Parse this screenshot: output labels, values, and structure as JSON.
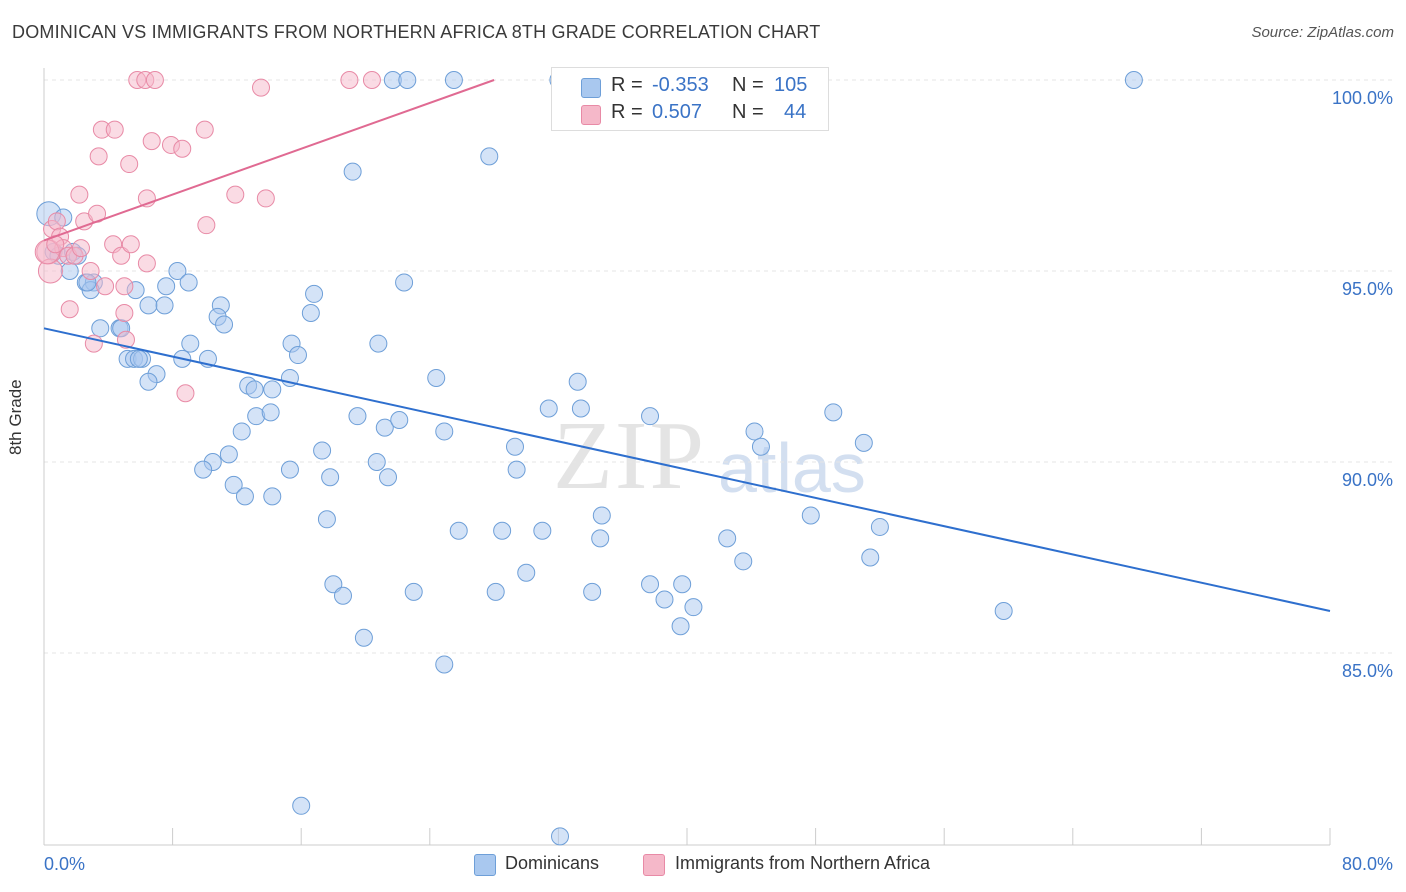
{
  "title": "DOMINICAN VS IMMIGRANTS FROM NORTHERN AFRICA 8TH GRADE CORRELATION CHART",
  "source": "Source: ZipAtlas.com",
  "watermark": {
    "zip": "ZIP",
    "atlas": "atlas"
  },
  "legend": {
    "rows": [
      {
        "r_label": "R =",
        "r_value": "-0.353",
        "n_label": "N =",
        "n_value": "105"
      },
      {
        "r_label": "R =",
        "r_value": "0.507",
        "n_label": "N =",
        "n_value": "44"
      }
    ]
  },
  "bottom_legend": {
    "series1": "Dominicans",
    "series2": "Immigrants from Northern Africa"
  },
  "colors": {
    "blue_fill": "#a9c8ef",
    "blue_stroke": "#6e9fd8",
    "blue_line": "#2e6fce",
    "pink_fill": "#f5b8c9",
    "pink_stroke": "#e88aa6",
    "pink_line": "#e06a92",
    "tick_label": "#3a73c6",
    "grid": "#e6e6e6"
  },
  "chart_data": {
    "type": "scatter",
    "title": "DOMINICAN VS IMMIGRANTS FROM NORTHERN AFRICA 8TH GRADE CORRELATION CHART",
    "xlabel": "",
    "ylabel": "8th Grade",
    "xlim": [
      0,
      80
    ],
    "ylim": [
      80.0,
      101.0
    ],
    "x_tick_labels": [
      "0.0%",
      "80.0%"
    ],
    "y_ticks": [
      85,
      90,
      95,
      100
    ],
    "y_tick_labels": [
      "85.0%",
      "90.0%",
      "95.0%",
      "100.0%"
    ],
    "grid": true,
    "legend_position": "top-center",
    "series": [
      {
        "name": "Dominicans",
        "color": "#6e9fd8",
        "r": -0.353,
        "n": 105,
        "trend": {
          "x": [
            0,
            80
          ],
          "y": [
            93.5,
            86.1
          ]
        },
        "points": [
          [
            0.3,
            96.5
          ],
          [
            1.2,
            96.4
          ],
          [
            0.6,
            95.5
          ],
          [
            0.9,
            95.4
          ],
          [
            1.8,
            95.5
          ],
          [
            2.1,
            95.4
          ],
          [
            1.6,
            95.0
          ],
          [
            2.6,
            94.7
          ],
          [
            3.1,
            94.7
          ],
          [
            2.9,
            94.5
          ],
          [
            5.7,
            94.5
          ],
          [
            6.5,
            94.1
          ],
          [
            7.6,
            94.6
          ],
          [
            8.3,
            95.0
          ],
          [
            9.0,
            94.7
          ],
          [
            11.0,
            94.1
          ],
          [
            10.8,
            93.8
          ],
          [
            11.2,
            93.6
          ],
          [
            7.5,
            94.1
          ],
          [
            3.5,
            93.5
          ],
          [
            4.7,
            93.5
          ],
          [
            5.2,
            92.7
          ],
          [
            5.6,
            92.7
          ],
          [
            6.1,
            92.7
          ],
          [
            7.0,
            92.3
          ],
          [
            8.6,
            92.7
          ],
          [
            10.2,
            92.7
          ],
          [
            6.5,
            92.1
          ],
          [
            9.1,
            93.1
          ],
          [
            12.7,
            92.0
          ],
          [
            14.2,
            91.9
          ],
          [
            15.3,
            92.2
          ],
          [
            15.4,
            93.1
          ],
          [
            15.8,
            92.8
          ],
          [
            13.1,
            91.9
          ],
          [
            13.2,
            91.2
          ],
          [
            14.1,
            91.3
          ],
          [
            12.3,
            90.8
          ],
          [
            11.5,
            90.2
          ],
          [
            10.5,
            90.0
          ],
          [
            9.9,
            89.8
          ],
          [
            11.8,
            89.4
          ],
          [
            12.5,
            89.1
          ],
          [
            14.2,
            89.1
          ],
          [
            15.3,
            89.8
          ],
          [
            17.3,
            90.3
          ],
          [
            17.8,
            89.6
          ],
          [
            19.5,
            91.2
          ],
          [
            20.7,
            90.0
          ],
          [
            21.2,
            90.9
          ],
          [
            22.1,
            91.1
          ],
          [
            21.4,
            89.6
          ],
          [
            17.6,
            88.5
          ],
          [
            18.0,
            86.8
          ],
          [
            18.6,
            86.5
          ],
          [
            19.9,
            85.4
          ],
          [
            23.0,
            86.6
          ],
          [
            24.9,
            84.7
          ],
          [
            25.8,
            88.2
          ],
          [
            28.1,
            86.6
          ],
          [
            28.5,
            88.2
          ],
          [
            29.4,
            89.8
          ],
          [
            30.0,
            87.1
          ],
          [
            31.0,
            88.2
          ],
          [
            29.3,
            90.4
          ],
          [
            31.4,
            91.4
          ],
          [
            33.4,
            91.4
          ],
          [
            33.2,
            92.1
          ],
          [
            34.7,
            88.6
          ],
          [
            34.6,
            88.0
          ],
          [
            34.1,
            86.6
          ],
          [
            37.7,
            86.8
          ],
          [
            38.6,
            86.4
          ],
          [
            39.7,
            86.8
          ],
          [
            40.4,
            86.2
          ],
          [
            39.6,
            85.7
          ],
          [
            42.5,
            88.0
          ],
          [
            43.5,
            87.4
          ],
          [
            44.2,
            90.8
          ],
          [
            44.6,
            90.4
          ],
          [
            47.7,
            88.6
          ],
          [
            49.1,
            91.3
          ],
          [
            51.0,
            90.5
          ],
          [
            52.0,
            88.3
          ],
          [
            51.4,
            87.5
          ],
          [
            59.7,
            86.1
          ],
          [
            27.7,
            98.0
          ],
          [
            19.2,
            97.6
          ],
          [
            16.6,
            93.9
          ],
          [
            16.8,
            94.4
          ],
          [
            22.4,
            94.7
          ],
          [
            20.8,
            93.1
          ],
          [
            24.4,
            92.2
          ],
          [
            24.9,
            90.8
          ],
          [
            37.7,
            91.2
          ],
          [
            16.0,
            81.0
          ],
          [
            32.1,
            80.2
          ],
          [
            21.7,
            100.0
          ],
          [
            22.6,
            100.0
          ],
          [
            25.5,
            100.0
          ],
          [
            32.0,
            100.0
          ],
          [
            67.8,
            100.0
          ],
          [
            2.7,
            94.7
          ],
          [
            5.9,
            92.7
          ],
          [
            4.8,
            93.5
          ]
        ]
      },
      {
        "name": "Immigrants from Northern Africa",
        "color": "#e88aa6",
        "r": 0.507,
        "n": 44,
        "trend": {
          "x": [
            0,
            28.0
          ],
          "y": [
            95.8,
            100.0
          ]
        },
        "points": [
          [
            0.3,
            95.5
          ],
          [
            0.4,
            95.0
          ],
          [
            0.5,
            96.1
          ],
          [
            0.8,
            96.3
          ],
          [
            1.0,
            95.9
          ],
          [
            1.2,
            95.6
          ],
          [
            1.5,
            95.4
          ],
          [
            1.9,
            95.4
          ],
          [
            2.3,
            95.6
          ],
          [
            2.5,
            96.3
          ],
          [
            1.6,
            94.0
          ],
          [
            2.2,
            97.0
          ],
          [
            2.9,
            95.0
          ],
          [
            3.3,
            96.5
          ],
          [
            3.6,
            98.7
          ],
          [
            3.4,
            98.0
          ],
          [
            4.4,
            98.7
          ],
          [
            4.3,
            95.7
          ],
          [
            4.8,
            95.4
          ],
          [
            5.3,
            97.8
          ],
          [
            5.4,
            95.7
          ],
          [
            5.0,
            94.6
          ],
          [
            5.8,
            100.0
          ],
          [
            6.3,
            100.0
          ],
          [
            6.9,
            100.0
          ],
          [
            6.4,
            96.9
          ],
          [
            6.7,
            98.4
          ],
          [
            6.4,
            95.2
          ],
          [
            7.9,
            98.3
          ],
          [
            8.6,
            98.2
          ],
          [
            10.0,
            98.7
          ],
          [
            10.1,
            96.2
          ],
          [
            11.9,
            97.0
          ],
          [
            13.8,
            96.9
          ],
          [
            13.5,
            99.8
          ],
          [
            19.0,
            100.0
          ],
          [
            20.4,
            100.0
          ],
          [
            8.8,
            91.8
          ],
          [
            3.1,
            93.1
          ],
          [
            5.0,
            93.9
          ],
          [
            5.1,
            93.2
          ],
          [
            0.2,
            95.5
          ],
          [
            0.7,
            95.7
          ],
          [
            3.8,
            94.6
          ]
        ]
      }
    ]
  }
}
